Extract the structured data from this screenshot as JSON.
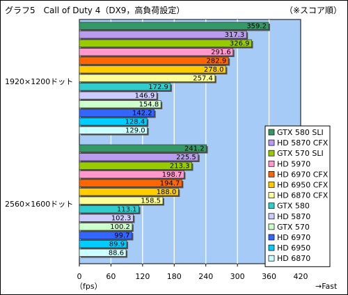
{
  "header": {
    "title": "グラフ5　Call of Duty 4（DX9，高負荷設定）",
    "note": "（※スコア順）"
  },
  "chart_data": {
    "type": "bar",
    "orientation": "horizontal",
    "xlim": [
      0,
      420
    ],
    "ticks": [
      0,
      60,
      120,
      180,
      240,
      300,
      360,
      420
    ],
    "xunit": "（fps）",
    "xdirection": "→Fast",
    "grid": true,
    "legend_position": "right",
    "series": [
      {
        "name": "GTX 580 SLI",
        "color": "#339966"
      },
      {
        "name": "HD 5870 CFX",
        "color": "#b89cf0"
      },
      {
        "name": "GTX 570 SLI",
        "color": "#99cc00"
      },
      {
        "name": "HD 5970",
        "color": "#ff99cc"
      },
      {
        "name": "HD 6970 CFX",
        "color": "#ff6600"
      },
      {
        "name": "HD 6950 CFX",
        "color": "#ffcc00"
      },
      {
        "name": "HD 6870 CFX",
        "color": "#ffff99"
      },
      {
        "name": "GTX 580",
        "color": "#33cccc"
      },
      {
        "name": "HD 5870",
        "color": "#ccccff"
      },
      {
        "name": "GTX 570",
        "color": "#ccffcc"
      },
      {
        "name": "HD 6970",
        "color": "#3366ff"
      },
      {
        "name": "HD 6950",
        "color": "#00ccff"
      },
      {
        "name": "HD 6870",
        "color": "#ccffff"
      }
    ],
    "groups": [
      {
        "label": "1920×1200ドット",
        "values": [
          "359.2",
          "317.3",
          "326.9",
          "291.6",
          "282.9",
          "278.0",
          "257.4",
          "172.9",
          "146.9",
          "154.8",
          "142.2",
          "128.4",
          "129.0"
        ]
      },
      {
        "label": "2560×1600ドット",
        "values": [
          "241.2",
          "225.5",
          "213.3",
          "198.7",
          "194.7",
          "188.0",
          "158.5",
          "113.1",
          "102.3",
          "100.2",
          "99.7",
          "89.9",
          "88.6"
        ]
      }
    ]
  }
}
